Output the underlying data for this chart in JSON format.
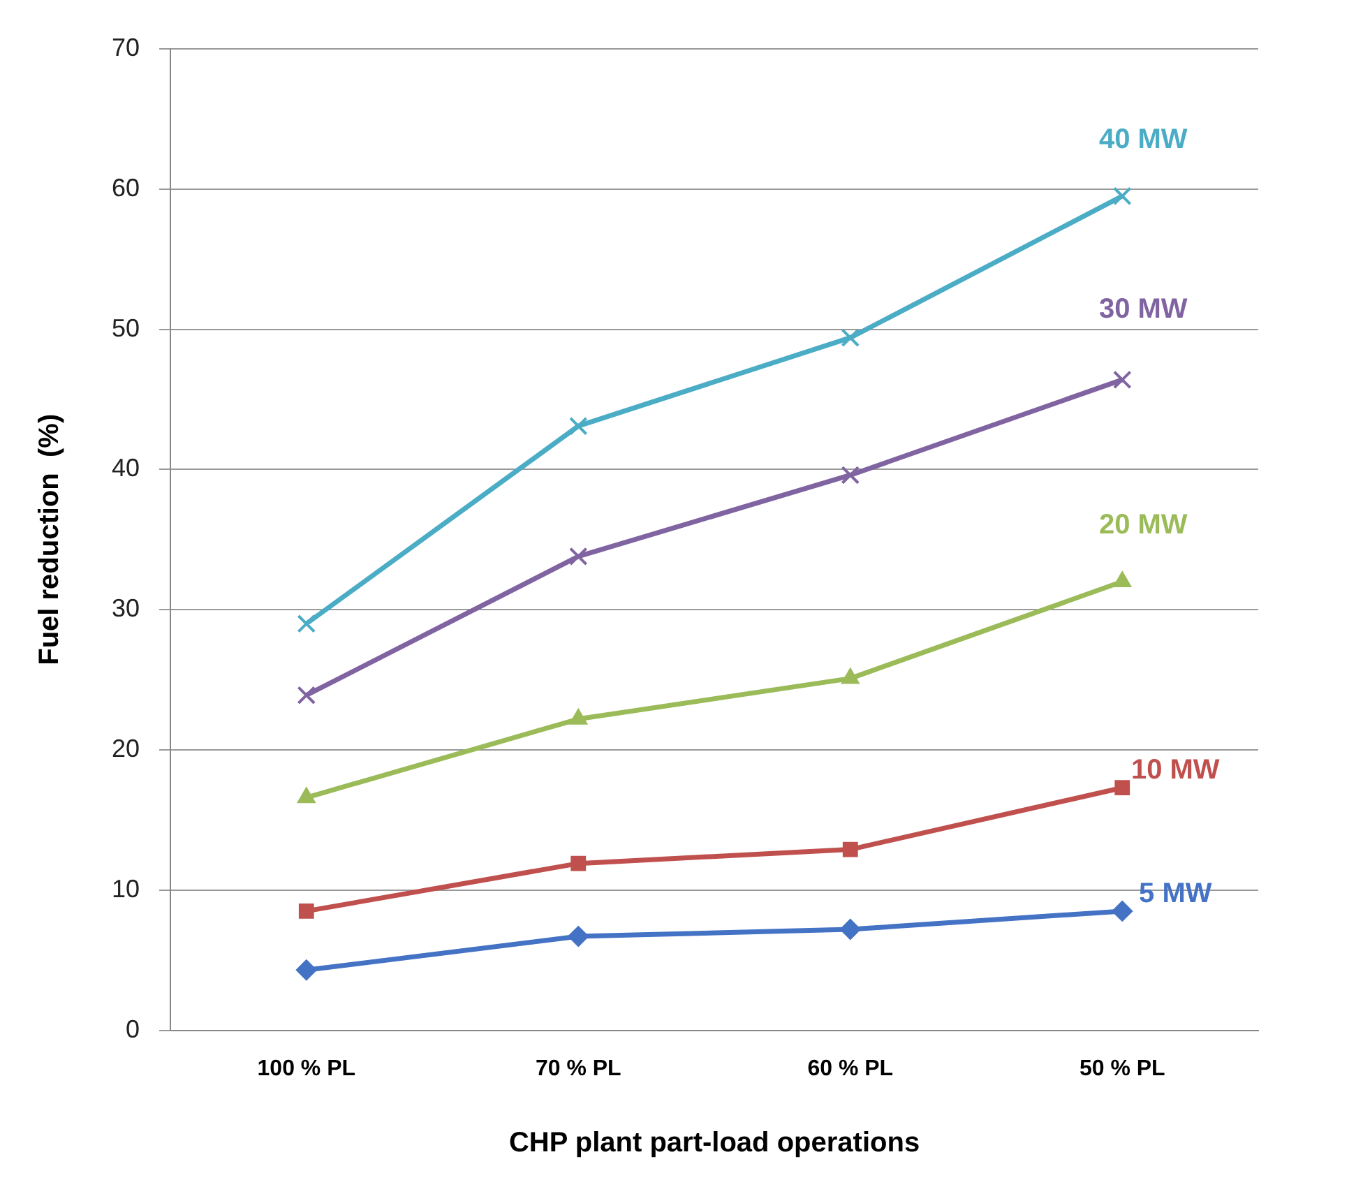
{
  "chart_data": {
    "type": "line",
    "xlabel": "CHP plant part-load operations",
    "ylabel": "Fuel reduction  (%)",
    "categories": [
      "100 % PL",
      "70 % PL",
      "60 % PL",
      "50 % PL"
    ],
    "series": [
      {
        "name": "5 MW",
        "color": "#4472c4",
        "marker": "diamond",
        "values": [
          4.3,
          6.7,
          7.2,
          8.5
        ]
      },
      {
        "name": "10 MW",
        "color": "#c0504d",
        "marker": "square",
        "values": [
          8.5,
          11.9,
          12.9,
          17.3
        ]
      },
      {
        "name": "20 MW",
        "color": "#9bbb59",
        "marker": "triangle",
        "values": [
          16.6,
          22.2,
          25.1,
          32.0
        ]
      },
      {
        "name": "30 MW",
        "color": "#8064a2",
        "marker": "cross",
        "values": [
          23.9,
          33.8,
          39.6,
          46.4
        ]
      },
      {
        "name": "40 MW",
        "color": "#4bacc6",
        "marker": "cross",
        "values": [
          29.0,
          43.1,
          49.4,
          59.5
        ]
      }
    ],
    "ylim": [
      0,
      70
    ],
    "yticks": [
      0,
      10,
      20,
      30,
      40,
      50,
      60,
      70
    ],
    "grid": "y",
    "legend": false
  }
}
